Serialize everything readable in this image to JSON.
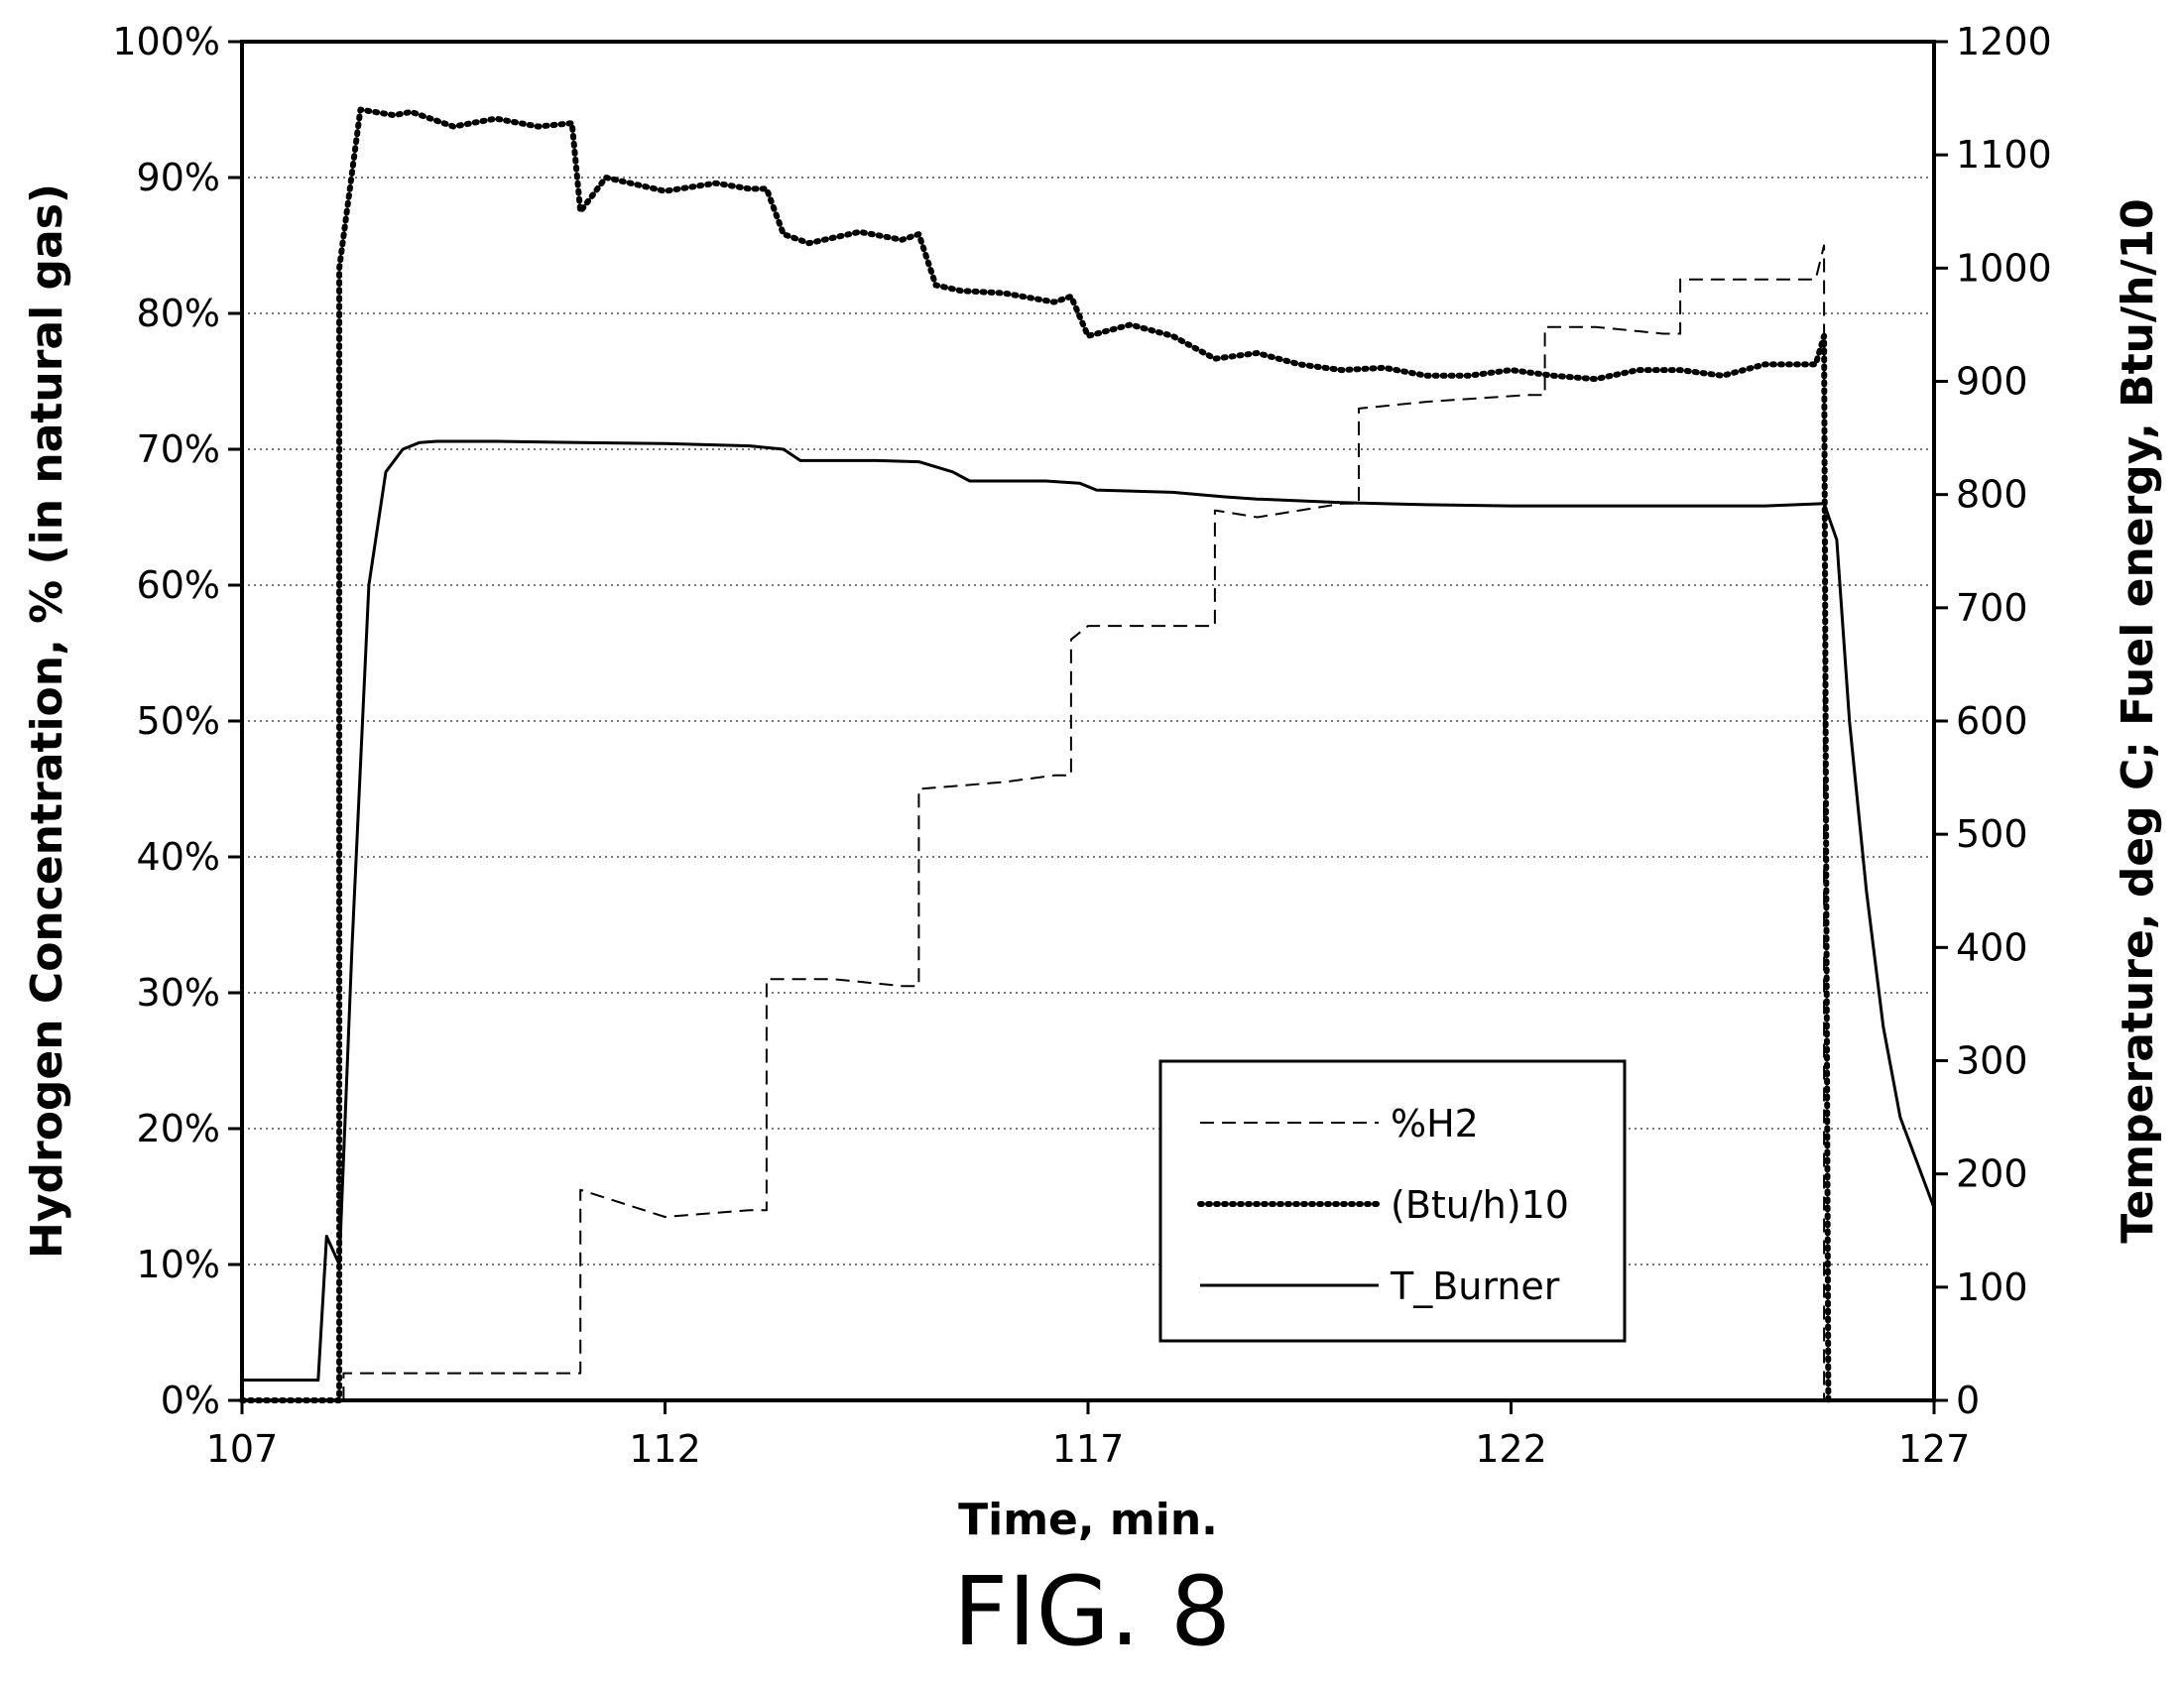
{
  "figure": {
    "caption": "FIG. 8"
  },
  "chart_data": {
    "type": "line",
    "xlabel": "Time, min.",
    "ylabel_left": "Hydrogen Concentration, % (in natural gas)",
    "ylabel_right": "Temperature, deg C; Fuel energy, Btu/h/10",
    "xlim": [
      107,
      127
    ],
    "ylim_left": [
      0,
      100
    ],
    "ylim_right": [
      0,
      1200
    ],
    "x_ticks": [
      107,
      112,
      117,
      122,
      127
    ],
    "x_tick_labels": [
      "107",
      "112",
      "117",
      "122",
      "127"
    ],
    "y_left_ticks": [
      0,
      10,
      20,
      30,
      40,
      50,
      60,
      70,
      80,
      90,
      100
    ],
    "y_left_tick_labels": [
      "0%",
      "10%",
      "20%",
      "30%",
      "40%",
      "50%",
      "60%",
      "70%",
      "80%",
      "90%",
      "100%"
    ],
    "y_right_ticks": [
      0,
      100,
      200,
      300,
      400,
      500,
      600,
      700,
      800,
      900,
      1000,
      1100,
      1200
    ],
    "y_right_tick_labels": [
      "0",
      "100",
      "200",
      "300",
      "400",
      "500",
      "600",
      "700",
      "800",
      "900",
      "1000",
      "1100",
      "1200"
    ],
    "grid": "horizontal dotted",
    "legend_position": "bottom-right inside plot",
    "series": [
      {
        "name": "%H2",
        "axis": "left",
        "style": "dashed",
        "color": "#000000",
        "x": [
          108.2,
          108.2,
          111.0,
          111.0,
          112.0,
          113.0,
          113.2,
          113.2,
          114.0,
          114.8,
          115.0,
          115.0,
          116.0,
          116.6,
          116.8,
          116.8,
          117.0,
          118.3,
          118.5,
          118.5,
          119.0,
          120.0,
          120.2,
          120.2,
          121.0,
          122.2,
          122.4,
          122.4,
          123.0,
          123.8,
          124.0,
          124.0,
          125.0,
          125.6,
          125.7,
          125.7
        ],
        "y": [
          0,
          2,
          2,
          15.5,
          13.5,
          14,
          14,
          31,
          31,
          30.5,
          30.5,
          45,
          45.5,
          46,
          46,
          56,
          57,
          57,
          57,
          65.5,
          65,
          66,
          66,
          73,
          73.5,
          74,
          74,
          79,
          79,
          78.5,
          78.5,
          82.5,
          82.5,
          82.5,
          85,
          0
        ]
      },
      {
        "name": "(Btu/h)10",
        "axis": "right",
        "style": "dotted",
        "color": "#000000",
        "x": [
          107.0,
          108.15,
          108.15,
          108.4,
          108.8,
          109.0,
          109.5,
          110.0,
          110.5,
          110.9,
          111.0,
          111.3,
          112.0,
          112.6,
          113.0,
          113.2,
          113.4,
          113.7,
          114.3,
          114.8,
          115.0,
          115.2,
          115.5,
          116.0,
          116.6,
          116.8,
          117.0,
          117.5,
          118.0,
          118.5,
          119.0,
          119.5,
          120.0,
          120.5,
          121.0,
          121.5,
          122.0,
          122.5,
          123.0,
          123.5,
          124.0,
          124.5,
          125.0,
          125.6,
          125.7,
          125.75
        ],
        "y": [
          0,
          0,
          1000,
          1140,
          1135,
          1138,
          1125,
          1132,
          1125,
          1128,
          1050,
          1080,
          1068,
          1075,
          1070,
          1070,
          1030,
          1022,
          1032,
          1025,
          1030,
          985,
          980,
          978,
          970,
          975,
          940,
          950,
          940,
          920,
          925,
          915,
          910,
          912,
          905,
          905,
          910,
          905,
          902,
          910,
          910,
          905,
          915,
          915,
          940,
          0
        ]
      },
      {
        "name": "T_Burner",
        "axis": "right",
        "style": "solid",
        "color": "#000000",
        "x": [
          107.0,
          107.9,
          108.0,
          108.15,
          108.3,
          108.5,
          108.7,
          108.9,
          109.1,
          109.3,
          110.0,
          111.0,
          112.0,
          113.0,
          113.4,
          113.6,
          114.5,
          115.0,
          115.4,
          115.6,
          116.5,
          116.9,
          117.1,
          118.0,
          118.6,
          119.0,
          120.0,
          121.0,
          122.0,
          123.0,
          124.0,
          125.0,
          125.7,
          125.85,
          126.0,
          126.2,
          126.4,
          126.6,
          127.0
        ],
        "y": [
          18,
          18,
          145,
          120,
          400,
          720,
          820,
          840,
          846,
          847,
          847,
          846,
          845,
          843,
          840,
          830,
          830,
          829,
          820,
          812,
          812,
          810,
          804,
          802,
          798,
          796,
          793,
          791,
          790,
          790,
          790,
          790,
          792,
          760,
          600,
          450,
          330,
          250,
          170
        ]
      }
    ]
  }
}
